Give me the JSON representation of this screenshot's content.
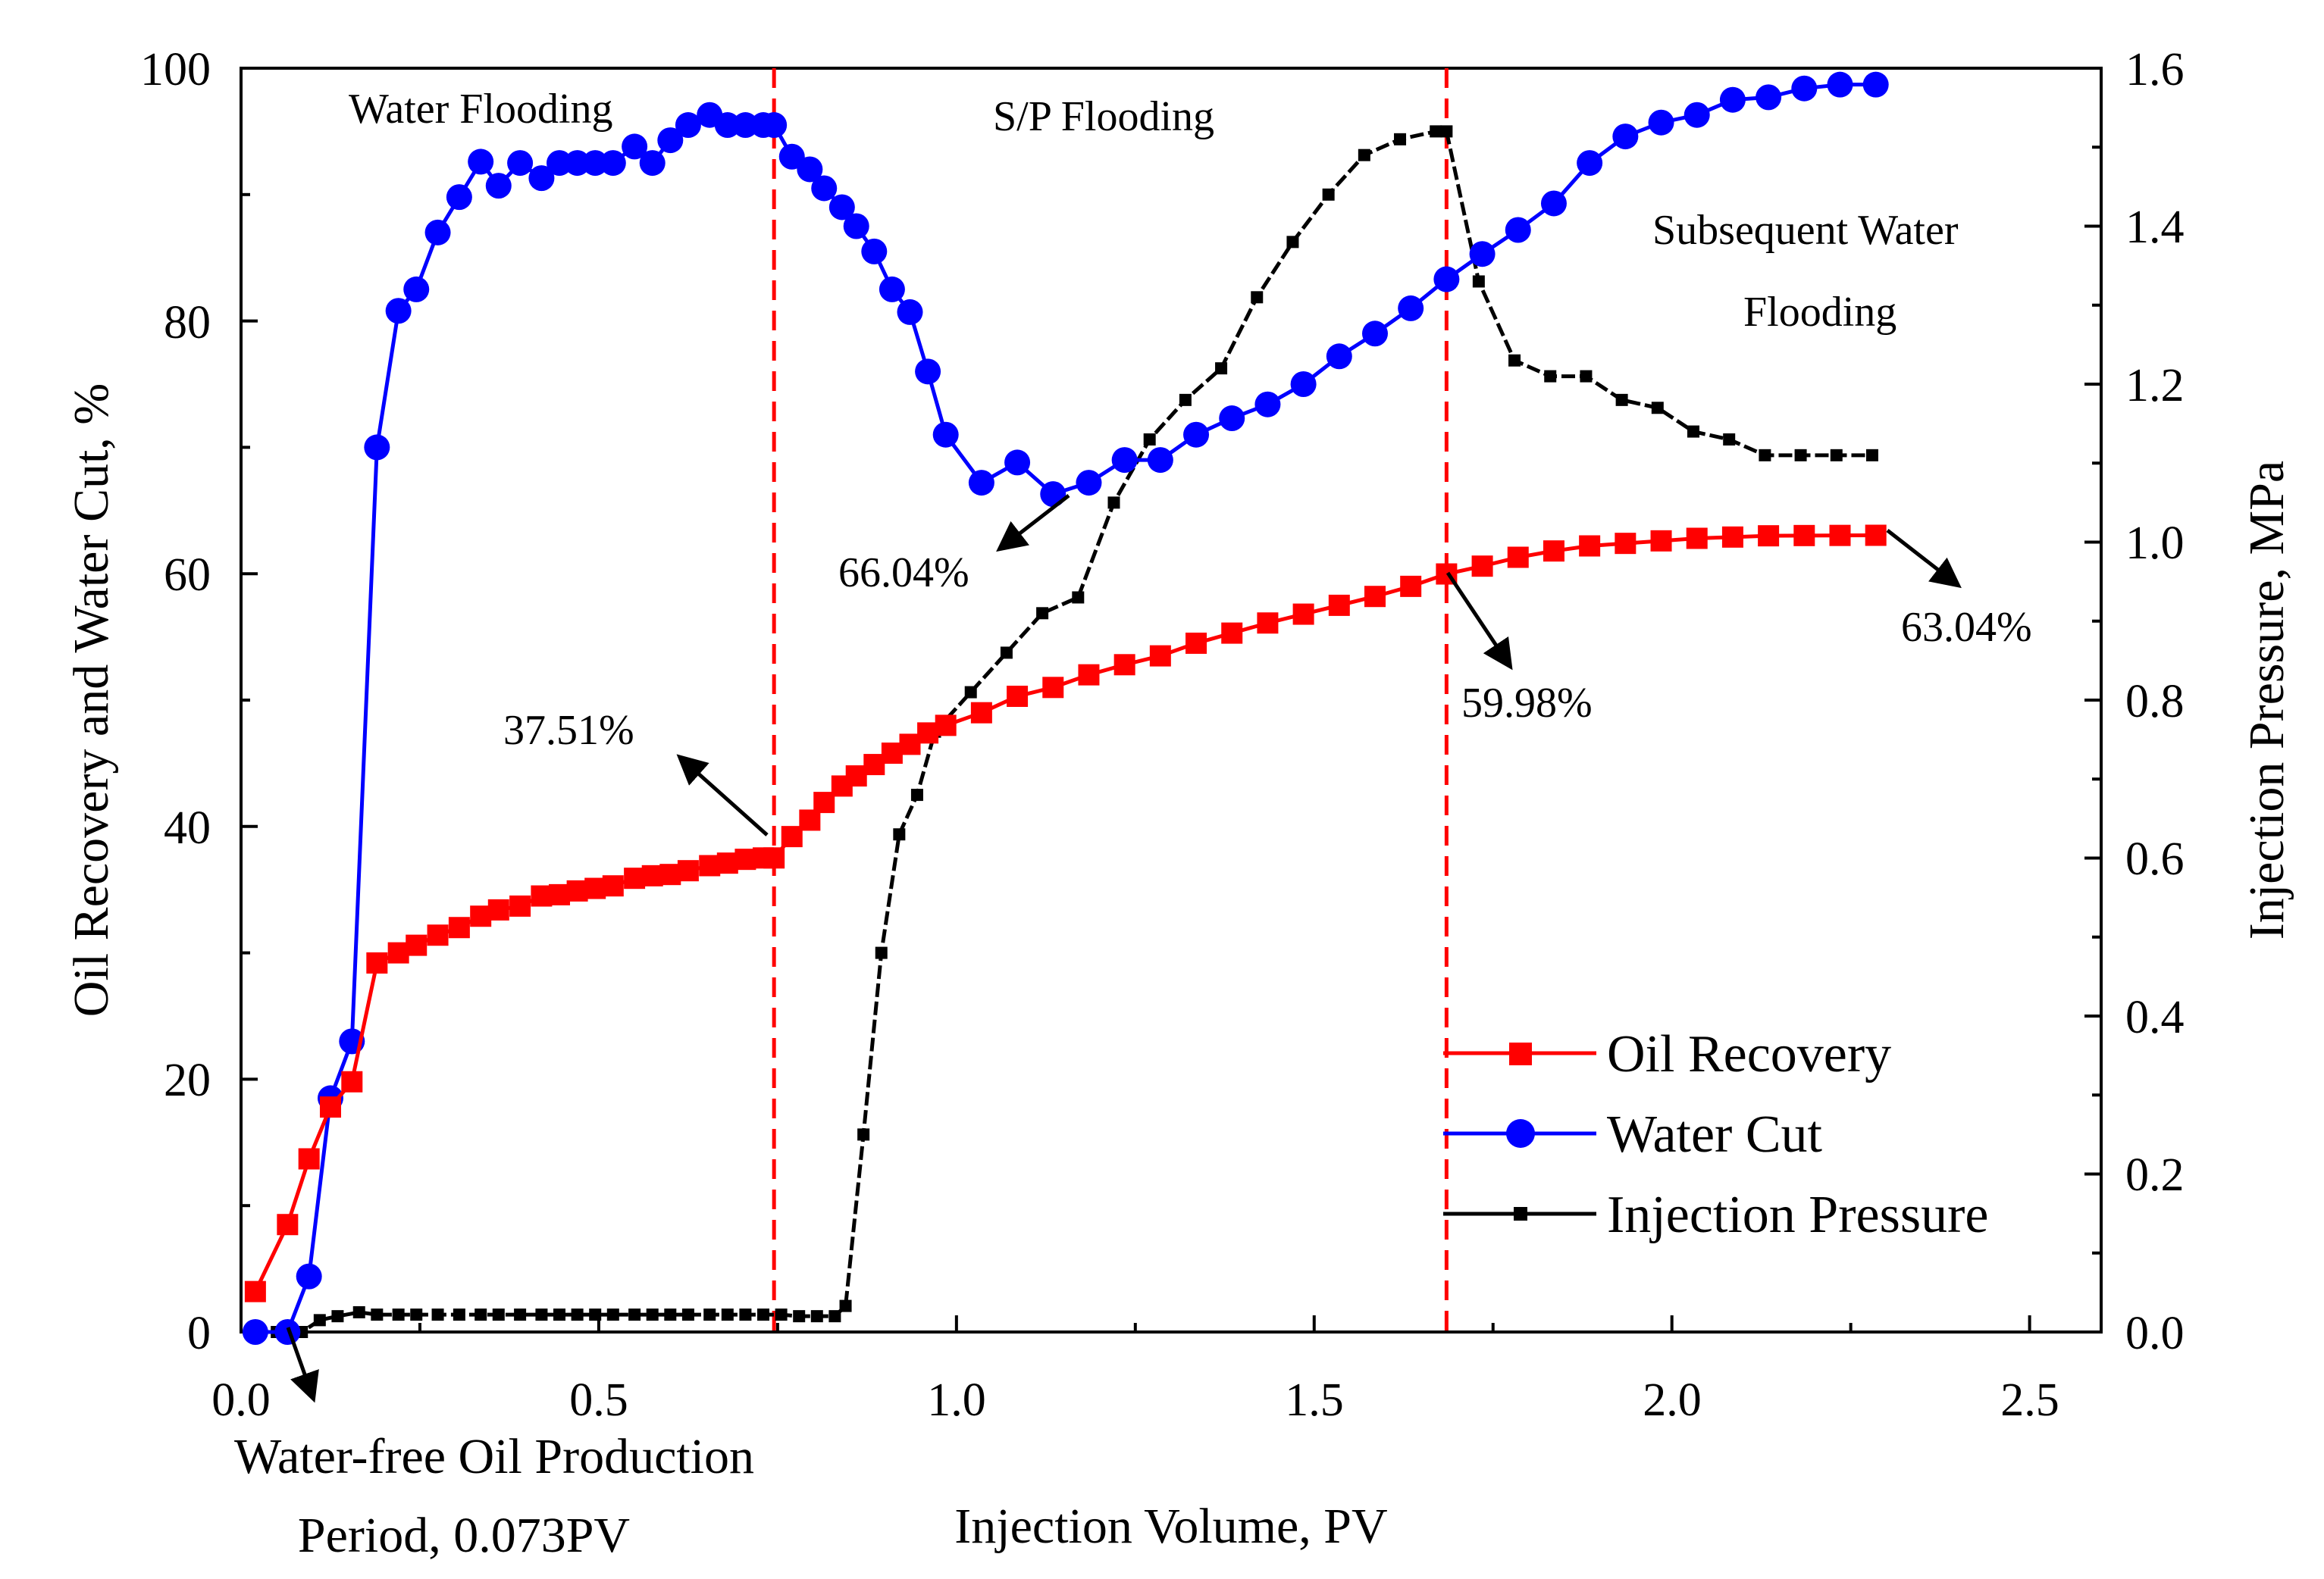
{
  "chart_data": {
    "type": "line",
    "xlabel": "Injection Volume, PV",
    "ylabel": "Oil Recovery and Water Cut, %",
    "y2label": "Injection Pressure, MPa",
    "xlim": [
      0,
      2.6
    ],
    "ylim": [
      0,
      100
    ],
    "y2lim": [
      0,
      1.6
    ],
    "x_ticks": [
      "0.0",
      "0.5",
      "1.0",
      "1.5",
      "2.0",
      "2.5"
    ],
    "y_ticks": [
      "0",
      "20",
      "40",
      "60",
      "80",
      "100"
    ],
    "y2_ticks": [
      "0.0",
      "0.2",
      "0.4",
      "0.6",
      "0.8",
      "1.0",
      "1.2",
      "1.4",
      "1.6"
    ],
    "colors": {
      "oil": "#ff0000",
      "water": "#0000ff",
      "pressure": "#000000",
      "divider": "#ff0000"
    },
    "dividers": [
      0.745,
      1.685
    ],
    "regions": [
      "Water Flooding",
      "S/P Flooding",
      "Subsequent Water",
      "Flooding"
    ],
    "annotations": [
      "37.51%",
      "66.04%",
      "59.98%",
      "63.04%",
      "Water-free Oil Production",
      "Period, 0.073PV"
    ],
    "legend": [
      "Oil Recovery",
      "Water Cut",
      "Injection Pressure"
    ],
    "series": [
      {
        "name": "Oil Recovery",
        "axis": "left",
        "marker": "square",
        "x": [
          0.02,
          0.065,
          0.095,
          0.125,
          0.155,
          0.19,
          0.22,
          0.245,
          0.275,
          0.305,
          0.335,
          0.36,
          0.39,
          0.42,
          0.445,
          0.47,
          0.495,
          0.52,
          0.55,
          0.575,
          0.6,
          0.625,
          0.655,
          0.68,
          0.705,
          0.73,
          0.745,
          0.77,
          0.795,
          0.815,
          0.84,
          0.86,
          0.885,
          0.91,
          0.935,
          0.96,
          0.985,
          1.035,
          1.085,
          1.135,
          1.185,
          1.235,
          1.285,
          1.335,
          1.385,
          1.435,
          1.485,
          1.535,
          1.585,
          1.635,
          1.685,
          1.735,
          1.785,
          1.835,
          1.885,
          1.935,
          1.985,
          2.035,
          2.085,
          2.135,
          2.185,
          2.235,
          2.285
        ],
        "y": [
          3.2,
          8.5,
          13.7,
          17.8,
          19.8,
          29.2,
          30.0,
          30.6,
          31.4,
          32.0,
          32.9,
          33.4,
          33.7,
          34.5,
          34.6,
          34.9,
          35.1,
          35.3,
          35.9,
          36.1,
          36.2,
          36.5,
          36.9,
          37.1,
          37.4,
          37.51,
          37.51,
          39.2,
          40.5,
          41.9,
          43.2,
          44.0,
          44.9,
          45.8,
          46.5,
          47.4,
          48.0,
          49.0,
          50.3,
          51.0,
          52.0,
          52.8,
          53.5,
          54.5,
          55.3,
          56.1,
          56.8,
          57.5,
          58.2,
          59.0,
          59.98,
          60.6,
          61.3,
          61.8,
          62.2,
          62.4,
          62.6,
          62.8,
          62.9,
          63.0,
          63.02,
          63.03,
          63.04
        ]
      },
      {
        "name": "Water Cut",
        "axis": "left",
        "marker": "circle",
        "x": [
          0.02,
          0.065,
          0.095,
          0.125,
          0.155,
          0.19,
          0.22,
          0.245,
          0.275,
          0.305,
          0.335,
          0.36,
          0.39,
          0.42,
          0.445,
          0.47,
          0.495,
          0.52,
          0.55,
          0.575,
          0.6,
          0.625,
          0.655,
          0.68,
          0.705,
          0.73,
          0.745,
          0.77,
          0.795,
          0.815,
          0.84,
          0.86,
          0.885,
          0.91,
          0.935,
          0.96,
          0.985,
          1.035,
          1.085,
          1.135,
          1.185,
          1.235,
          1.285,
          1.335,
          1.385,
          1.435,
          1.485,
          1.535,
          1.585,
          1.635,
          1.685,
          1.735,
          1.785,
          1.835,
          1.885,
          1.935,
          1.985,
          2.035,
          2.085,
          2.135,
          2.185,
          2.235,
          2.285
        ],
        "y": [
          0,
          0,
          4.4,
          18.5,
          23.0,
          70.0,
          80.8,
          82.5,
          87.0,
          89.8,
          92.6,
          90.7,
          92.5,
          91.3,
          92.5,
          92.5,
          92.5,
          92.5,
          93.8,
          92.5,
          94.3,
          95.5,
          96.3,
          95.5,
          95.5,
          95.5,
          95.5,
          93.0,
          92.0,
          90.5,
          89.0,
          87.5,
          85.5,
          82.5,
          80.7,
          76.0,
          71.0,
          67.2,
          68.8,
          66.3,
          67.2,
          69.0,
          69.0,
          71.0,
          72.3,
          73.4,
          75.0,
          77.2,
          79.0,
          81.0,
          83.3,
          85.3,
          87.2,
          89.3,
          92.5,
          94.6,
          95.7,
          96.3,
          97.5,
          97.7,
          98.4,
          98.7,
          98.7
        ]
      },
      {
        "name": "Injection Pressure",
        "axis": "right",
        "marker": "small-square",
        "x": [
          0.02,
          0.05,
          0.085,
          0.11,
          0.135,
          0.165,
          0.19,
          0.22,
          0.245,
          0.275,
          0.305,
          0.335,
          0.36,
          0.39,
          0.42,
          0.445,
          0.47,
          0.495,
          0.52,
          0.55,
          0.575,
          0.6,
          0.625,
          0.655,
          0.68,
          0.705,
          0.73,
          0.755,
          0.78,
          0.805,
          0.83,
          0.845,
          0.87,
          0.895,
          0.92,
          0.945,
          0.97,
          1.02,
          1.07,
          1.12,
          1.17,
          1.22,
          1.27,
          1.32,
          1.37,
          1.42,
          1.47,
          1.52,
          1.57,
          1.62,
          1.67,
          1.685,
          1.73,
          1.78,
          1.83,
          1.88,
          1.93,
          1.98,
          2.03,
          2.08,
          2.13,
          2.18,
          2.23,
          2.28
        ],
        "y": [
          0.0,
          0.0,
          0.0,
          0.015,
          0.02,
          0.025,
          0.022,
          0.022,
          0.022,
          0.022,
          0.022,
          0.022,
          0.022,
          0.022,
          0.022,
          0.022,
          0.022,
          0.022,
          0.022,
          0.022,
          0.022,
          0.022,
          0.022,
          0.022,
          0.022,
          0.022,
          0.022,
          0.022,
          0.02,
          0.02,
          0.02,
          0.033,
          0.25,
          0.48,
          0.63,
          0.68,
          0.76,
          0.81,
          0.86,
          0.91,
          0.93,
          1.05,
          1.13,
          1.18,
          1.22,
          1.31,
          1.38,
          1.44,
          1.49,
          1.51,
          1.52,
          1.52,
          1.33,
          1.23,
          1.21,
          1.21,
          1.18,
          1.17,
          1.14,
          1.13,
          1.11,
          1.11,
          1.11,
          1.11
        ]
      }
    ]
  }
}
